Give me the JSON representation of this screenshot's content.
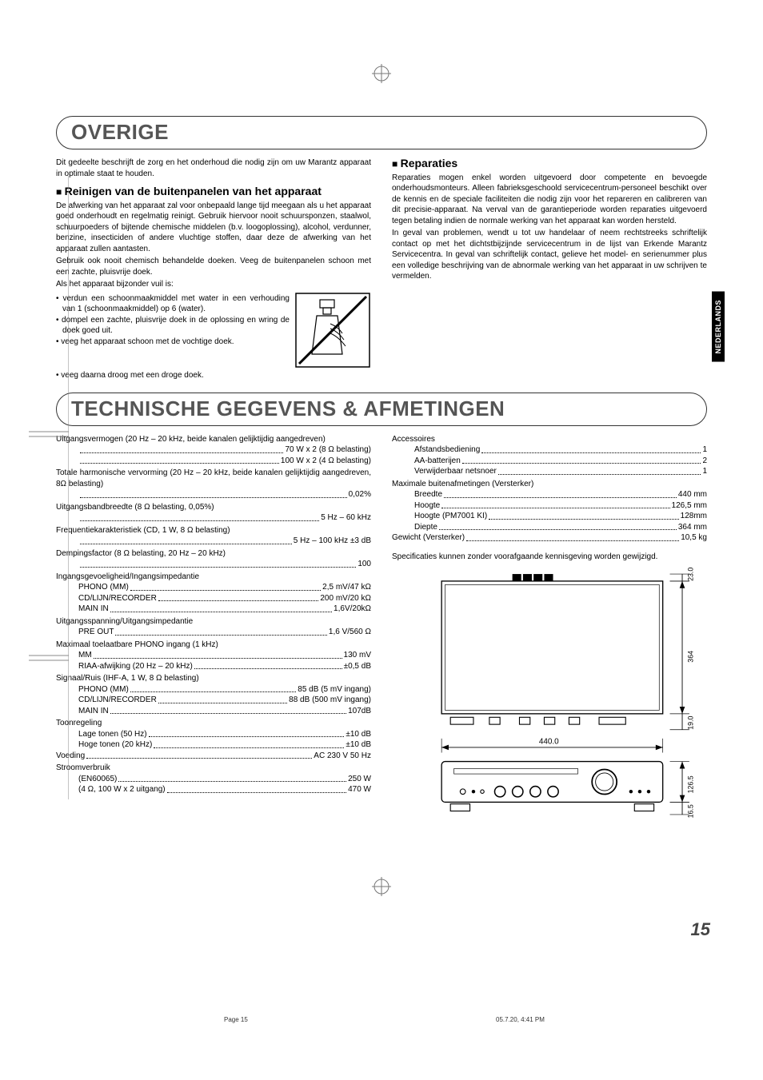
{
  "sideTab": "NEDERLANDS",
  "section1": {
    "title": "OVERIGE",
    "intro": "Dit gedeelte beschrijft de zorg en het onderhoud die nodig zijn om uw Marantz apparaat in optimale staat te houden.",
    "sub1": "Reinigen van de buitenpanelen van het apparaat",
    "p1": "De afwerking van het apparaat zal voor onbepaald lange tijd meegaan als u het apparaat goed onderhoudt en regelmatig reinigt. Gebruik hiervoor nooit schuursponzen, staalwol, schuurpoeders of bijtende chemische middelen (b.v. loogoplossing), alcohol, verdunner, benzine, insecticiden of andere vluchtige stoffen, daar deze de afwerking van het apparaat zullen aantasten.",
    "p2": "Gebruik ook nooit chemisch behandelde doeken. Veeg de buitenpanelen schoon met een zachte, pluisvrije doek.",
    "p3": "Als het apparaat bijzonder vuil is:",
    "b1": "verdun een schoonmaakmiddel met water in een verhouding van 1 (schoonmaakmiddel) op 6 (water).",
    "b2": "dompel een zachte, pluisvrije doek in de oplossing en wring de doek goed uit.",
    "b3": "veeg het apparaat schoon met de vochtige doek.",
    "b4": "veeg daarna droog met een droge doek.",
    "sub2": "Reparaties",
    "rep1": "Reparaties mogen enkel worden uitgevoerd door competente en bevoegde onderhoudsmonteurs. Alleen fabrieksgeschoold servicecentrum-personeel beschikt over de kennis en de speciale faciliteiten die nodig zijn voor het repareren en calibreren van dit precisie-apparaat.  Na verval van de garantieperiode worden reparaties uitgevoerd tegen betaling indien de normale werking van het apparaat kan worden hersteld.",
    "rep2": "In geval van problemen, wendt u tot uw handelaar of neem rechtstreeks schriftelijk contact op met het dichtstbijzijnde servicecentrum in de lijst van Erkende Marantz Servicecentra. In geval van schriftelijk contact, gelieve het model- en serienummer plus een volledige beschrijving van de abnormale werking van het apparaat in uw schrijven te vermelden."
  },
  "section2": {
    "title": "TECHNISCHE GEGEVENS & AFMETINGEN",
    "left": [
      {
        "type": "header",
        "text": "Uitgangsvermogen (20 Hz – 20 kHz, beide kanalen gelijktijdig aangedreven)"
      },
      {
        "type": "dotline",
        "indent": true,
        "lbl": "",
        "val": "70 W x 2 (8 Ω belasting)"
      },
      {
        "type": "dotline",
        "indent": true,
        "lbl": "",
        "val": "100 W x 2 (4 Ω belasting)"
      },
      {
        "type": "header",
        "text": "Totale harmonische vervorming (20 Hz – 20 kHz, beide kanalen gelijktijdig aangedreven, 8Ω belasting)"
      },
      {
        "type": "dotline",
        "indent": true,
        "lbl": "",
        "val": "0,02%"
      },
      {
        "type": "header",
        "text": "Uitgangsbandbreedte (8 Ω belasting, 0,05%)"
      },
      {
        "type": "dotline",
        "indent": true,
        "lbl": "",
        "val": "5 Hz – 60 kHz"
      },
      {
        "type": "header",
        "text": "Frequentiekarakteristiek (CD, 1 W, 8 Ω belasting)"
      },
      {
        "type": "dotline",
        "indent": true,
        "lbl": "",
        "val": "5 Hz – 100 kHz ±3 dB"
      },
      {
        "type": "header",
        "text": "Dempingsfactor (8 Ω belasting, 20 Hz – 20 kHz)"
      },
      {
        "type": "dotline",
        "indent": true,
        "lbl": "",
        "val": "100"
      },
      {
        "type": "header",
        "text": "Ingangsgevoeligheid/Ingangsimpedantie"
      },
      {
        "type": "dotline",
        "indent": true,
        "lbl": "PHONO (MM)",
        "val": "2,5 mV/47 kΩ"
      },
      {
        "type": "dotline",
        "indent": true,
        "lbl": "CD/LIJN/RECORDER",
        "val": "200 mV/20 kΩ"
      },
      {
        "type": "dotline",
        "indent": true,
        "lbl": "MAIN IN",
        "val": "1,6V/20kΩ"
      },
      {
        "type": "header",
        "text": "Uitgangsspanning/Uitgangsimpedantie"
      },
      {
        "type": "dotline",
        "indent": true,
        "lbl": "PRE OUT",
        "val": "1,6 V/560 Ω"
      },
      {
        "type": "header",
        "text": "Maximaal toelaatbare PHONO ingang (1 kHz)"
      },
      {
        "type": "dotline",
        "indent": true,
        "lbl": "MM",
        "val": "130 mV"
      },
      {
        "type": "dotline",
        "indent": true,
        "lbl": "RIAA-afwijking (20 Hz – 20 kHz)",
        "val": "±0,5 dB"
      },
      {
        "type": "header",
        "text": "Signaal/Ruis (IHF-A, 1 W, 8 Ω belasting)"
      },
      {
        "type": "dotline",
        "indent": true,
        "lbl": "PHONO (MM)",
        "val": "85 dB (5 mV ingang)"
      },
      {
        "type": "dotline",
        "indent": true,
        "lbl": "CD/LIJN/RECORDER",
        "val": "88 dB (500 mV ingang)"
      },
      {
        "type": "dotline",
        "indent": true,
        "lbl": "MAIN IN",
        "val": "107dB"
      },
      {
        "type": "header",
        "text": "Toonregeling"
      },
      {
        "type": "dotline",
        "indent": true,
        "lbl": "Lage tonen (50 Hz)",
        "val": "±10 dB"
      },
      {
        "type": "dotline",
        "indent": true,
        "lbl": "Hoge tonen (20 kHz)",
        "val": "±10 dB"
      },
      {
        "type": "dotline",
        "indent": false,
        "lbl": "Voeding",
        "val": "AC 230 V 50 Hz"
      },
      {
        "type": "header",
        "text": "Stroomverbruik"
      },
      {
        "type": "dotline",
        "indent": true,
        "lbl": "(EN60065)",
        "val": "250 W"
      },
      {
        "type": "dotline",
        "indent": true,
        "lbl": "(4 Ω, 100 W x 2 uitgang)",
        "val": "470 W"
      }
    ],
    "right": [
      {
        "type": "header",
        "text": "Accessoires"
      },
      {
        "type": "dotline",
        "indent": true,
        "lbl": "Afstandsbediening",
        "val": "1"
      },
      {
        "type": "dotline",
        "indent": true,
        "lbl": "AA-batterijen",
        "val": "2"
      },
      {
        "type": "dotline",
        "indent": true,
        "lbl": "Verwijderbaar netsnoer",
        "val": "1"
      },
      {
        "type": "header",
        "text": "Maximale buitenafmetingen (Versterker)"
      },
      {
        "type": "dotline",
        "indent": true,
        "lbl": "Breedte",
        "val": "440 mm"
      },
      {
        "type": "dotline",
        "indent": true,
        "lbl": "Hoogte",
        "val": "126,5 mm"
      },
      {
        "type": "dotline",
        "indent": true,
        "lbl": "Hoogte (PM7001 KI)",
        "val": "128mm"
      },
      {
        "type": "dotline",
        "indent": true,
        "lbl": "Diepte",
        "val": "364 mm"
      },
      {
        "type": "dotline",
        "indent": false,
        "lbl": "Gewicht (Versterker)",
        "val": "10,5 kg"
      }
    ],
    "note": "Specificaties kunnen zonder voorafgaande kennisgeving worden gewijzigd.",
    "dims": {
      "width": "440.0",
      "depth": "364",
      "h1": "23.0",
      "h2": "19.0",
      "h3": "126.5",
      "h4": "16.5"
    }
  },
  "pageNumber": "15",
  "footer": {
    "left": "Page 15",
    "right": "05.7.20, 4:41 PM"
  }
}
